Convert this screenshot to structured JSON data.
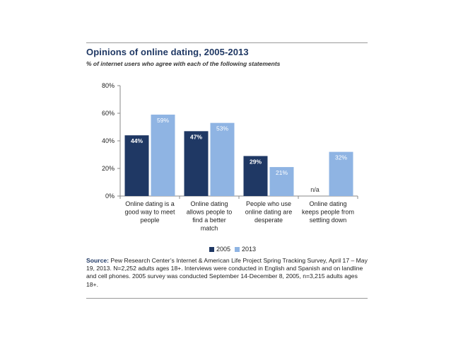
{
  "title": "Opinions of online dating, 2005-2013",
  "subtitle": "% of internet users who agree with each of the following statements",
  "legend": {
    "series_2005": "2005",
    "series_2013": "2013"
  },
  "source": {
    "label": "Source:",
    "text": "Pew Research Center’s Internet & American Life Project Spring Tracking Survey, April 17 – May 19, 2013. N=2,252 adults ages 18+. Interviews were conducted in English and Spanish and on landline and cell phones.  2005 survey was conducted September 14-December 8, 2005, n=3,215 adults ages 18+."
  },
  "colors": {
    "series_2005": "#1f3864",
    "series_2013": "#8fb4e3",
    "axis": "#888888"
  },
  "chart_data": {
    "type": "bar",
    "title": "Opinions of online dating, 2005-2013",
    "subtitle": "% of internet users who agree with each of the following statements",
    "categories": [
      [
        "Online dating is a",
        "good way to meet",
        "people"
      ],
      [
        "Online dating",
        "allows people to",
        "find a better",
        "match"
      ],
      [
        "People who use",
        "online dating are",
        "desperate"
      ],
      [
        "Online dating",
        "keeps people from",
        "settling down"
      ]
    ],
    "series": [
      {
        "name": "2005",
        "values": [
          44,
          47,
          29,
          null
        ],
        "labels": [
          "44%",
          "47%",
          "29%",
          "n/a"
        ]
      },
      {
        "name": "2013",
        "values": [
          59,
          53,
          21,
          32
        ],
        "labels": [
          "59%",
          "53%",
          "21%",
          "32%"
        ]
      }
    ],
    "ylim": [
      0,
      80
    ],
    "yticks": [
      0,
      20,
      40,
      60,
      80
    ],
    "ytick_labels": [
      "0%",
      "20%",
      "40%",
      "60%",
      "80%"
    ],
    "grid": false,
    "legend_position": "bottom"
  }
}
